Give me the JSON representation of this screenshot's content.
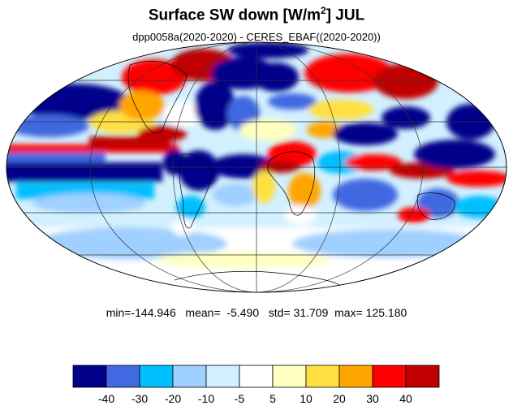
{
  "title": {
    "main": "Surface SW down [W/m",
    "superscript": "2",
    "suffix": "]  JUL"
  },
  "subtitle": "dpp0058a(2020-2020) - CERES_EBAF((2020-2020))",
  "stats": {
    "min_label": "min=",
    "min": "-144.946",
    "mean_label": "mean=",
    "mean": "-5.490",
    "std_label": "std=",
    "std": "31.709",
    "max_label": "max=",
    "max": "125.180"
  },
  "colorbar": {
    "colors": [
      "#00008b",
      "#4169e1",
      "#00bfff",
      "#a0d0ff",
      "#d2f0ff",
      "#ffffff",
      "#ffffc0",
      "#ffe040",
      "#ffa500",
      "#ff0000",
      "#c00000"
    ],
    "labels": [
      "-40",
      "-30",
      "-20",
      "-10",
      "-5",
      "5",
      "10",
      "20",
      "30",
      "40"
    ]
  },
  "map": {
    "projection": "Mollweide",
    "land_outline_color": "#000000"
  }
}
